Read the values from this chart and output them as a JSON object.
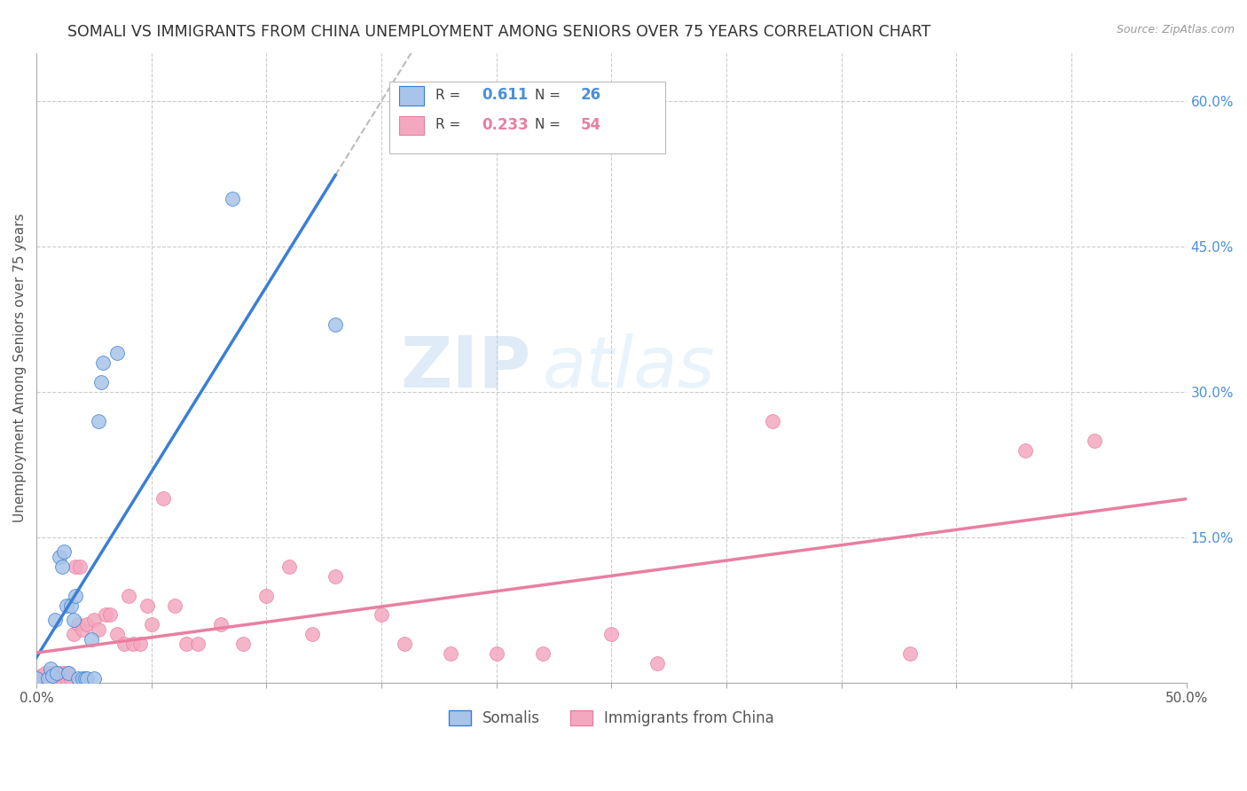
{
  "title": "SOMALI VS IMMIGRANTS FROM CHINA UNEMPLOYMENT AMONG SENIORS OVER 75 YEARS CORRELATION CHART",
  "source": "Source: ZipAtlas.com",
  "ylabel": "Unemployment Among Seniors over 75 years",
  "xlim": [
    0.0,
    0.5
  ],
  "ylim": [
    0.0,
    0.65
  ],
  "xtick_vals": [
    0.0,
    0.05,
    0.1,
    0.15,
    0.2,
    0.25,
    0.3,
    0.35,
    0.4,
    0.45,
    0.5
  ],
  "xtick_labels": [
    "0.0%",
    "",
    "",
    "",
    "",
    "",
    "",
    "",
    "",
    "",
    "50.0%"
  ],
  "ytick_vals_right": [
    0.15,
    0.3,
    0.45,
    0.6
  ],
  "ytick_labels_right": [
    "15.0%",
    "30.0%",
    "45.0%",
    "60.0%"
  ],
  "watermark_zip": "ZIP",
  "watermark_atlas": "atlas",
  "legend_blue_r": "0.611",
  "legend_blue_n": "26",
  "legend_pink_r": "0.233",
  "legend_pink_n": "54",
  "legend_label_blue": "Somalis",
  "legend_label_pink": "Immigrants from China",
  "somali_fill": "#a8c4e8",
  "somali_edge": "#3a7fd4",
  "china_fill": "#f4a8c0",
  "china_edge": "#e87fa0",
  "grid_color": "#cccccc",
  "somali_x": [
    0.0,
    0.005,
    0.006,
    0.007,
    0.008,
    0.009,
    0.01,
    0.011,
    0.012,
    0.013,
    0.014,
    0.015,
    0.016,
    0.017,
    0.018,
    0.02,
    0.021,
    0.022,
    0.024,
    0.025,
    0.027,
    0.028,
    0.029,
    0.035,
    0.085,
    0.13
  ],
  "somali_y": [
    0.005,
    0.005,
    0.015,
    0.007,
    0.065,
    0.01,
    0.13,
    0.12,
    0.135,
    0.08,
    0.01,
    0.08,
    0.065,
    0.09,
    0.005,
    0.005,
    0.005,
    0.005,
    0.045,
    0.005,
    0.27,
    0.31,
    0.33,
    0.34,
    0.5,
    0.37
  ],
  "china_x": [
    0.0,
    0.001,
    0.002,
    0.003,
    0.004,
    0.005,
    0.006,
    0.007,
    0.008,
    0.009,
    0.01,
    0.011,
    0.012,
    0.013,
    0.014,
    0.015,
    0.016,
    0.017,
    0.018,
    0.019,
    0.02,
    0.022,
    0.025,
    0.027,
    0.03,
    0.032,
    0.035,
    0.038,
    0.04,
    0.042,
    0.045,
    0.048,
    0.05,
    0.055,
    0.06,
    0.065,
    0.07,
    0.08,
    0.09,
    0.1,
    0.11,
    0.12,
    0.13,
    0.15,
    0.16,
    0.18,
    0.2,
    0.22,
    0.25,
    0.27,
    0.32,
    0.38,
    0.43,
    0.46
  ],
  "china_y": [
    0.005,
    0.005,
    0.007,
    0.005,
    0.01,
    0.005,
    0.01,
    0.005,
    0.01,
    0.005,
    0.01,
    0.005,
    0.01,
    0.005,
    0.01,
    0.005,
    0.05,
    0.12,
    0.06,
    0.12,
    0.055,
    0.06,
    0.065,
    0.055,
    0.07,
    0.07,
    0.05,
    0.04,
    0.09,
    0.04,
    0.04,
    0.08,
    0.06,
    0.19,
    0.08,
    0.04,
    0.04,
    0.06,
    0.04,
    0.09,
    0.12,
    0.05,
    0.11,
    0.07,
    0.04,
    0.03,
    0.03,
    0.03,
    0.05,
    0.02,
    0.27,
    0.03,
    0.24,
    0.25
  ]
}
